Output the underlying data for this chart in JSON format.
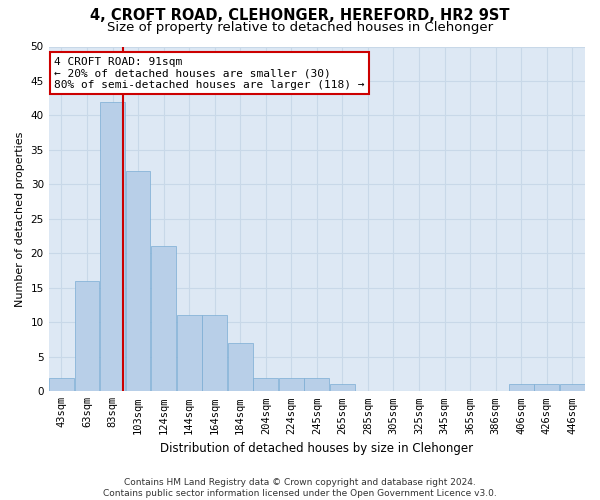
{
  "title": "4, CROFT ROAD, CLEHONGER, HEREFORD, HR2 9ST",
  "subtitle": "Size of property relative to detached houses in Clehonger",
  "xlabel": "Distribution of detached houses by size in Clehonger",
  "ylabel": "Number of detached properties",
  "bins": [
    43,
    63,
    83,
    103,
    124,
    144,
    164,
    184,
    204,
    224,
    245,
    265,
    285,
    305,
    325,
    345,
    365,
    386,
    406,
    426,
    446
  ],
  "counts": [
    2,
    16,
    42,
    32,
    21,
    11,
    11,
    7,
    2,
    2,
    2,
    1,
    0,
    0,
    0,
    0,
    0,
    0,
    1,
    1,
    1
  ],
  "bar_color": "#b8cfe8",
  "bar_edge_color": "#7aadd4",
  "vline_x": 91,
  "vline_color": "#cc0000",
  "annotation_text": "4 CROFT ROAD: 91sqm\n← 20% of detached houses are smaller (30)\n80% of semi-detached houses are larger (118) →",
  "annotation_box_color": "#ffffff",
  "annotation_box_edge": "#cc0000",
  "ylim": [
    0,
    50
  ],
  "yticks": [
    0,
    5,
    10,
    15,
    20,
    25,
    30,
    35,
    40,
    45,
    50
  ],
  "grid_color": "#c8d8e8",
  "bg_color": "#dde8f4",
  "footer": "Contains HM Land Registry data © Crown copyright and database right 2024.\nContains public sector information licensed under the Open Government Licence v3.0.",
  "title_fontsize": 10.5,
  "subtitle_fontsize": 9.5,
  "xlabel_fontsize": 8.5,
  "ylabel_fontsize": 8,
  "tick_fontsize": 7.5,
  "footer_fontsize": 6.5,
  "annot_fontsize": 8
}
